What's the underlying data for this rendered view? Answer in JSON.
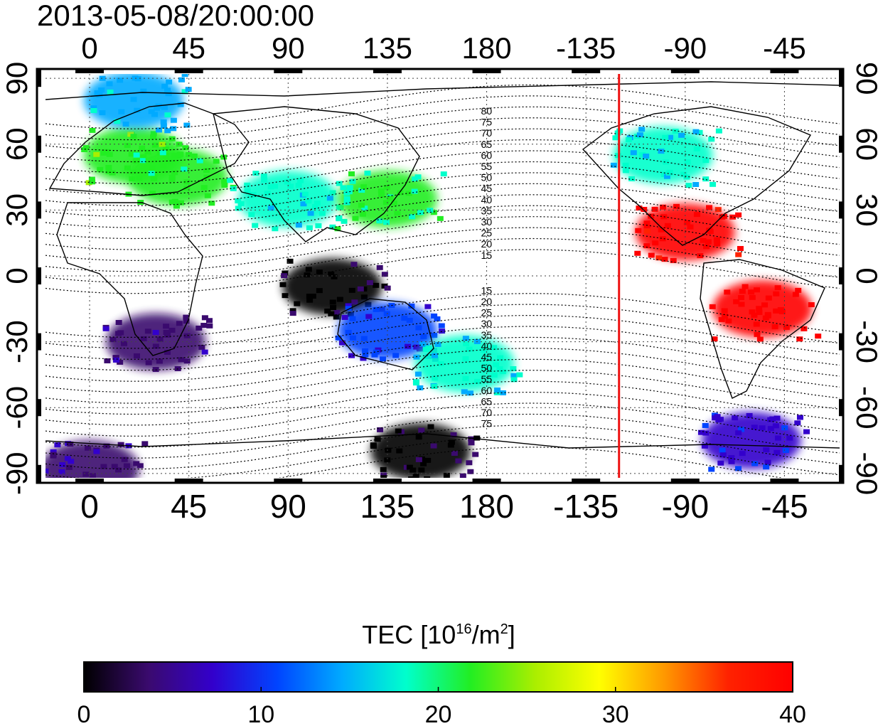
{
  "title": "2013-05-08/20:00:00",
  "map": {
    "lon_ticks": [
      "0",
      "45",
      "90",
      "135",
      "180",
      "-135",
      "-90",
      "-45"
    ],
    "lon_tick_values": [
      0,
      45,
      90,
      135,
      180,
      -135,
      -90,
      -45
    ],
    "lat_ticks_left": [
      "90",
      "60",
      "30",
      "0",
      "-30",
      "-60",
      "-90"
    ],
    "lat_ticks_right": [
      "90",
      "60",
      "30",
      "0",
      "-30",
      "-60",
      "-90"
    ],
    "lat_tick_values": [
      90,
      60,
      30,
      0,
      -30,
      -60,
      -90
    ],
    "lon_range": [
      -20,
      340
    ],
    "lat_range": [
      -92,
      92
    ],
    "grid": "dotted",
    "terminator_longitude": -120,
    "terminator_color": "#ee1111",
    "contour_labels_north": [
      "80",
      "75",
      "70",
      "65",
      "60",
      "55",
      "50",
      "45",
      "40",
      "35",
      "30",
      "25",
      "20",
      "15"
    ],
    "contour_labels_south": [
      "15",
      "20",
      "25",
      "30",
      "35",
      "40",
      "45",
      "50",
      "55",
      "60",
      "65",
      "70",
      "75"
    ]
  },
  "colorbar": {
    "title_prefix": "TEC  [10",
    "title_sup1": "16",
    "title_mid": "/m",
    "title_sup2": "2",
    "title_suffix": "]",
    "ticks": [
      "0",
      "10",
      "20",
      "30",
      "40"
    ],
    "tick_values": [
      0,
      10,
      20,
      30,
      40
    ],
    "range": [
      0,
      40
    ],
    "colormap": [
      "#000000",
      "#3a0a6e",
      "#3300cc",
      "#0044ff",
      "#00aaff",
      "#00ffcc",
      "#22ee22",
      "#aaee00",
      "#ffff00",
      "#ff9900",
      "#ff2200",
      "#ff0000"
    ]
  },
  "tec_regions": [
    {
      "lon": 20,
      "lat": 55,
      "tec": 22
    },
    {
      "lon": 40,
      "lat": 45,
      "tec": 21
    },
    {
      "lon": 90,
      "lat": 35,
      "tec": 18
    },
    {
      "lon": 135,
      "lat": 35,
      "tec": 20
    },
    {
      "lon": 20,
      "lat": 80,
      "tec": 15
    },
    {
      "lon": 30,
      "lat": -30,
      "tec": 4
    },
    {
      "lon": 110,
      "lat": -5,
      "tec": 1
    },
    {
      "lon": 135,
      "lat": -25,
      "tec": 10
    },
    {
      "lon": 170,
      "lat": -40,
      "tec": 17
    },
    {
      "lon": -90,
      "lat": 20,
      "tec": 40
    },
    {
      "lon": -55,
      "lat": -15,
      "tec": 40
    },
    {
      "lon": -100,
      "lat": 55,
      "tec": 17
    },
    {
      "lon": 150,
      "lat": -80,
      "tec": 1
    },
    {
      "lon": -60,
      "lat": -75,
      "tec": 8
    },
    {
      "lon": 0,
      "lat": -88,
      "tec": 5
    }
  ]
}
